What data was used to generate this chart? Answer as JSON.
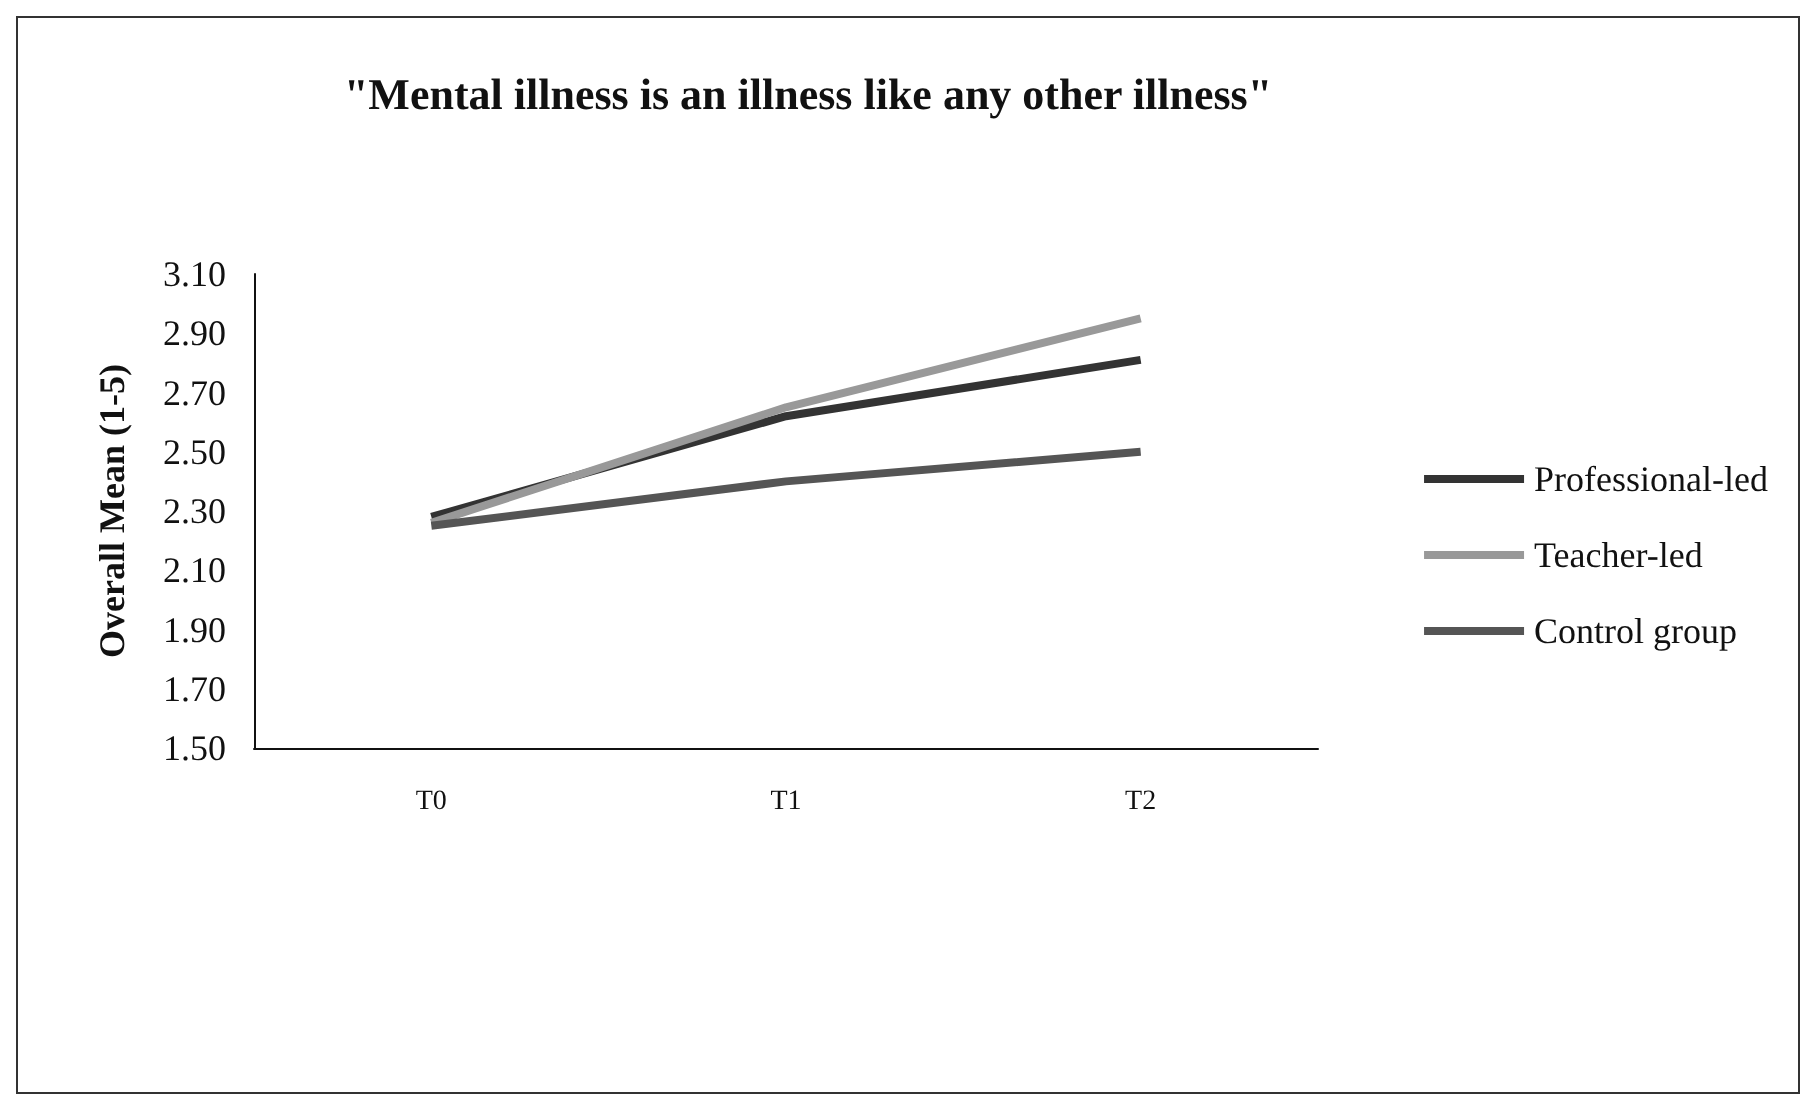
{
  "chart_data": {
    "type": "line",
    "title": "\"Mental illness is an illness like any other illness\"",
    "ylabel": "Overall Mean (1-5)",
    "categories": [
      "T0",
      "T1",
      "T2"
    ],
    "series": [
      {
        "name": "Professional-led",
        "color": "#333333",
        "values": [
          2.28,
          2.62,
          2.81
        ]
      },
      {
        "name": "Teacher-led",
        "color": "#999999",
        "values": [
          2.26,
          2.65,
          2.95
        ]
      },
      {
        "name": "Control group",
        "color": "#555555",
        "values": [
          2.25,
          2.4,
          2.5
        ]
      }
    ],
    "ylim": [
      1.5,
      3.1
    ],
    "yticks": [
      {
        "value": 1.5,
        "label": "1.50"
      },
      {
        "value": 1.7,
        "label": "1.70"
      },
      {
        "value": 1.9,
        "label": "1.90"
      },
      {
        "value": 2.1,
        "label": "2.10"
      },
      {
        "value": 2.3,
        "label": "2.30"
      },
      {
        "value": 2.5,
        "label": "2.50"
      },
      {
        "value": 2.7,
        "label": "2.70"
      },
      {
        "value": 2.9,
        "label": "2.90"
      },
      {
        "value": 3.1,
        "label": "3.10"
      }
    ],
    "grid": false,
    "legend": "right",
    "marker": "none",
    "line_style": "solid"
  }
}
